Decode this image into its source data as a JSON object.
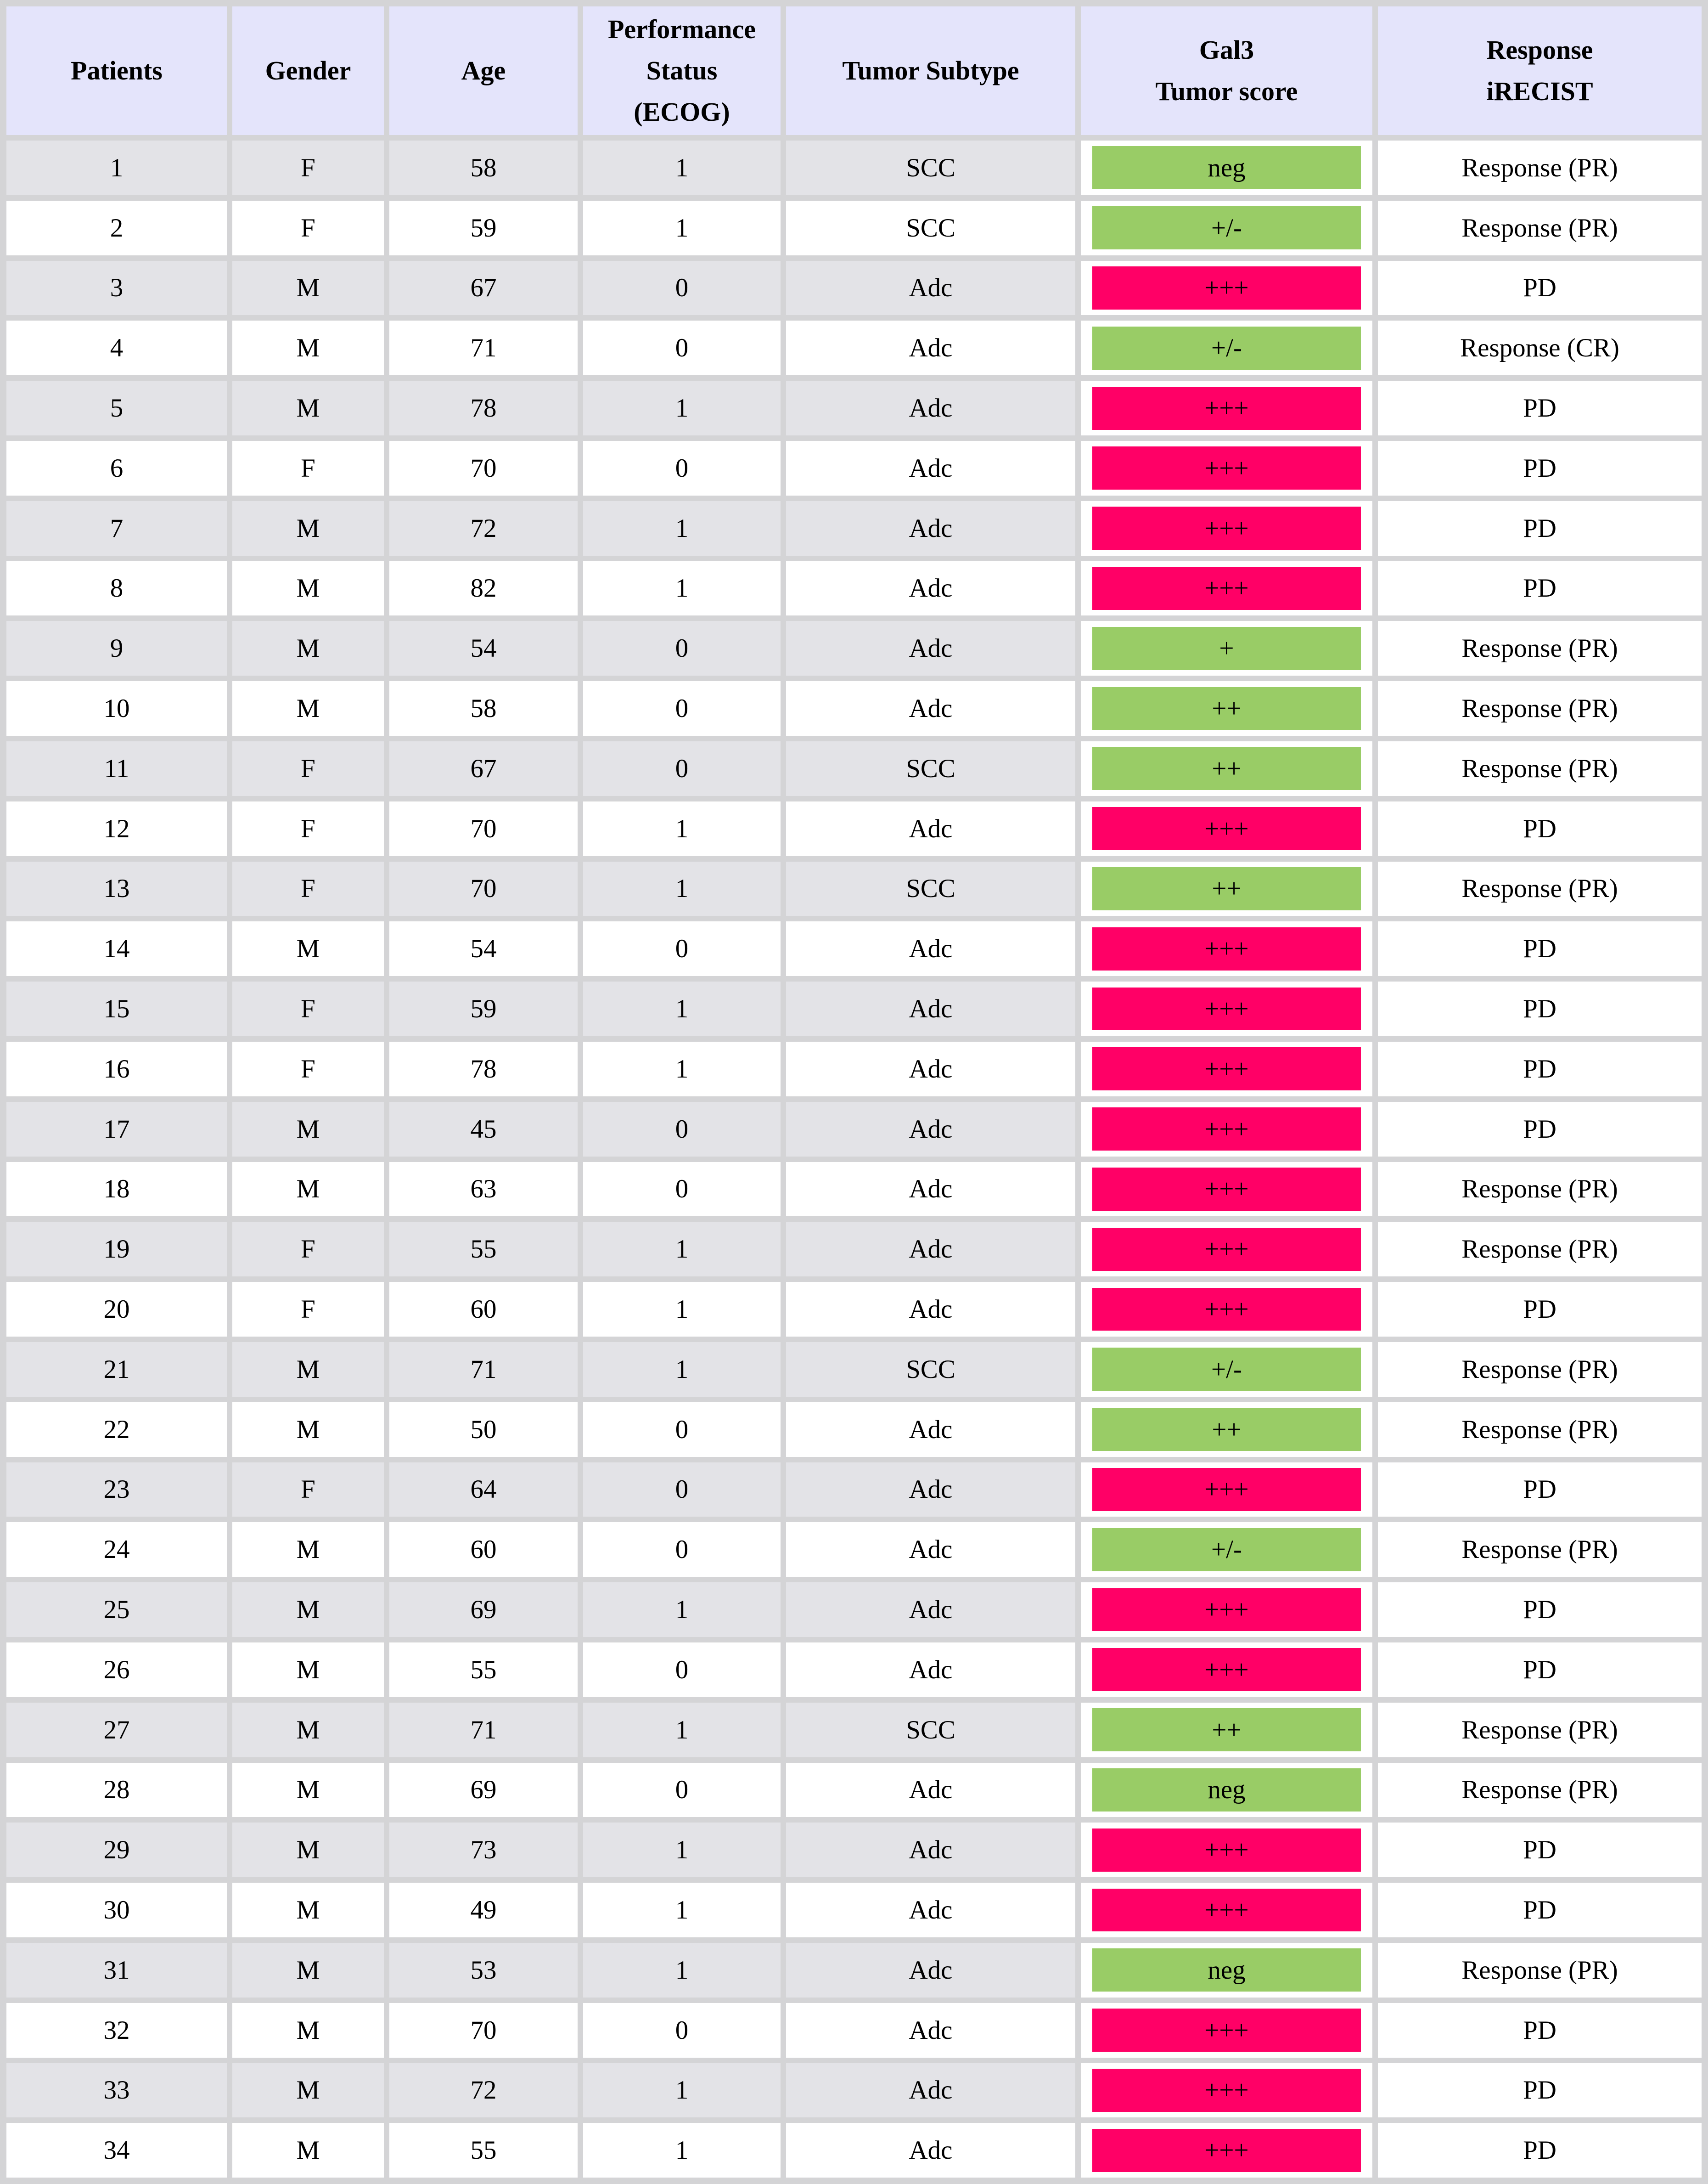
{
  "table": {
    "header": {
      "patients": "Patients",
      "gender": "Gender",
      "age": "Age",
      "ecog": "Performance\nStatus\n(ECOG)",
      "subtype": "Tumor Subtype",
      "gal3": "Gal3\nTumor score",
      "response": "Response\niRECIST"
    },
    "colors": {
      "score_positive_green": "#99CC66",
      "score_high_pink": "#FF0066",
      "header_bg": "#E4E4FB",
      "alt_row_bg": "#E3E3E7",
      "grid_line": "#D4D4D6"
    },
    "rows": [
      {
        "patient": "1",
        "gender": "F",
        "age": "58",
        "ecog": "1",
        "subtype": "SCC",
        "gal3_score": "neg",
        "gal3_color": "green",
        "response": "Response (PR)"
      },
      {
        "patient": "2",
        "gender": "F",
        "age": "59",
        "ecog": "1",
        "subtype": "SCC",
        "gal3_score": "+/-",
        "gal3_color": "green",
        "response": "Response (PR)"
      },
      {
        "patient": "3",
        "gender": "M",
        "age": "67",
        "ecog": "0",
        "subtype": "Adc",
        "gal3_score": "+++",
        "gal3_color": "pink",
        "response": "PD"
      },
      {
        "patient": "4",
        "gender": "M",
        "age": "71",
        "ecog": "0",
        "subtype": "Adc",
        "gal3_score": "+/-",
        "gal3_color": "green",
        "response": "Response (CR)"
      },
      {
        "patient": "5",
        "gender": "M",
        "age": "78",
        "ecog": "1",
        "subtype": "Adc",
        "gal3_score": "+++",
        "gal3_color": "pink",
        "response": "PD"
      },
      {
        "patient": "6",
        "gender": "F",
        "age": "70",
        "ecog": "0",
        "subtype": "Adc",
        "gal3_score": "+++",
        "gal3_color": "pink",
        "response": "PD"
      },
      {
        "patient": "7",
        "gender": "M",
        "age": "72",
        "ecog": "1",
        "subtype": "Adc",
        "gal3_score": "+++",
        "gal3_color": "pink",
        "response": "PD"
      },
      {
        "patient": "8",
        "gender": "M",
        "age": "82",
        "ecog": "1",
        "subtype": "Adc",
        "gal3_score": "+++",
        "gal3_color": "pink",
        "response": "PD"
      },
      {
        "patient": "9",
        "gender": "M",
        "age": "54",
        "ecog": "0",
        "subtype": "Adc",
        "gal3_score": "+",
        "gal3_color": "green",
        "response": "Response (PR)"
      },
      {
        "patient": "10",
        "gender": "M",
        "age": "58",
        "ecog": "0",
        "subtype": "Adc",
        "gal3_score": "++",
        "gal3_color": "green",
        "response": "Response (PR)"
      },
      {
        "patient": "11",
        "gender": "F",
        "age": "67",
        "ecog": "0",
        "subtype": "SCC",
        "gal3_score": "++",
        "gal3_color": "green",
        "response": "Response (PR)"
      },
      {
        "patient": "12",
        "gender": "F",
        "age": "70",
        "ecog": "1",
        "subtype": "Adc",
        "gal3_score": "+++",
        "gal3_color": "pink",
        "response": "PD"
      },
      {
        "patient": "13",
        "gender": "F",
        "age": "70",
        "ecog": "1",
        "subtype": "SCC",
        "gal3_score": "++",
        "gal3_color": "green",
        "response": "Response (PR)"
      },
      {
        "patient": "14",
        "gender": "M",
        "age": "54",
        "ecog": "0",
        "subtype": "Adc",
        "gal3_score": "+++",
        "gal3_color": "pink",
        "response": "PD"
      },
      {
        "patient": "15",
        "gender": "F",
        "age": "59",
        "ecog": "1",
        "subtype": "Adc",
        "gal3_score": "+++",
        "gal3_color": "pink",
        "response": "PD"
      },
      {
        "patient": "16",
        "gender": "F",
        "age": "78",
        "ecog": "1",
        "subtype": "Adc",
        "gal3_score": "+++",
        "gal3_color": "pink",
        "response": "PD"
      },
      {
        "patient": "17",
        "gender": "M",
        "age": "45",
        "ecog": "0",
        "subtype": "Adc",
        "gal3_score": "+++",
        "gal3_color": "pink",
        "response": "PD"
      },
      {
        "patient": "18",
        "gender": "M",
        "age": "63",
        "ecog": "0",
        "subtype": "Adc",
        "gal3_score": "+++",
        "gal3_color": "pink",
        "response": "Response (PR)"
      },
      {
        "patient": "19",
        "gender": "F",
        "age": "55",
        "ecog": "1",
        "subtype": "Adc",
        "gal3_score": "+++",
        "gal3_color": "pink",
        "response": "Response (PR)"
      },
      {
        "patient": "20",
        "gender": "F",
        "age": "60",
        "ecog": "1",
        "subtype": "Adc",
        "gal3_score": "+++",
        "gal3_color": "pink",
        "response": "PD"
      },
      {
        "patient": "21",
        "gender": "M",
        "age": "71",
        "ecog": "1",
        "subtype": "SCC",
        "gal3_score": "+/-",
        "gal3_color": "green",
        "response": "Response (PR)"
      },
      {
        "patient": "22",
        "gender": "M",
        "age": "50",
        "ecog": "0",
        "subtype": "Adc",
        "gal3_score": "++",
        "gal3_color": "green",
        "response": "Response (PR)"
      },
      {
        "patient": "23",
        "gender": "F",
        "age": "64",
        "ecog": "0",
        "subtype": "Adc",
        "gal3_score": "+++",
        "gal3_color": "pink",
        "response": "PD"
      },
      {
        "patient": "24",
        "gender": "M",
        "age": "60",
        "ecog": "0",
        "subtype": "Adc",
        "gal3_score": "+/-",
        "gal3_color": "green",
        "response": "Response (PR)"
      },
      {
        "patient": "25",
        "gender": "M",
        "age": "69",
        "ecog": "1",
        "subtype": "Adc",
        "gal3_score": "+++",
        "gal3_color": "pink",
        "response": "PD"
      },
      {
        "patient": "26",
        "gender": "M",
        "age": "55",
        "ecog": "0",
        "subtype": "Adc",
        "gal3_score": "+++",
        "gal3_color": "pink",
        "response": "PD"
      },
      {
        "patient": "27",
        "gender": "M",
        "age": "71",
        "ecog": "1",
        "subtype": "SCC",
        "gal3_score": "++",
        "gal3_color": "green",
        "response": "Response (PR)"
      },
      {
        "patient": "28",
        "gender": "M",
        "age": "69",
        "ecog": "0",
        "subtype": "Adc",
        "gal3_score": "neg",
        "gal3_color": "green",
        "response": "Response (PR)"
      },
      {
        "patient": "29",
        "gender": "M",
        "age": "73",
        "ecog": "1",
        "subtype": "Adc",
        "gal3_score": "+++",
        "gal3_color": "pink",
        "response": "PD"
      },
      {
        "patient": "30",
        "gender": "M",
        "age": "49",
        "ecog": "1",
        "subtype": "Adc",
        "gal3_score": "+++",
        "gal3_color": "pink",
        "response": "PD"
      },
      {
        "patient": "31",
        "gender": "M",
        "age": "53",
        "ecog": "1",
        "subtype": "Adc",
        "gal3_score": "neg",
        "gal3_color": "green",
        "response": "Response (PR)"
      },
      {
        "patient": "32",
        "gender": "M",
        "age": "70",
        "ecog": "0",
        "subtype": "Adc",
        "gal3_score": "+++",
        "gal3_color": "pink",
        "response": "PD"
      },
      {
        "patient": "33",
        "gender": "M",
        "age": "72",
        "ecog": "1",
        "subtype": "Adc",
        "gal3_score": "+++",
        "gal3_color": "pink",
        "response": "PD"
      },
      {
        "patient": "34",
        "gender": "M",
        "age": "55",
        "ecog": "1",
        "subtype": "Adc",
        "gal3_score": "+++",
        "gal3_color": "pink",
        "response": "PD"
      }
    ]
  }
}
